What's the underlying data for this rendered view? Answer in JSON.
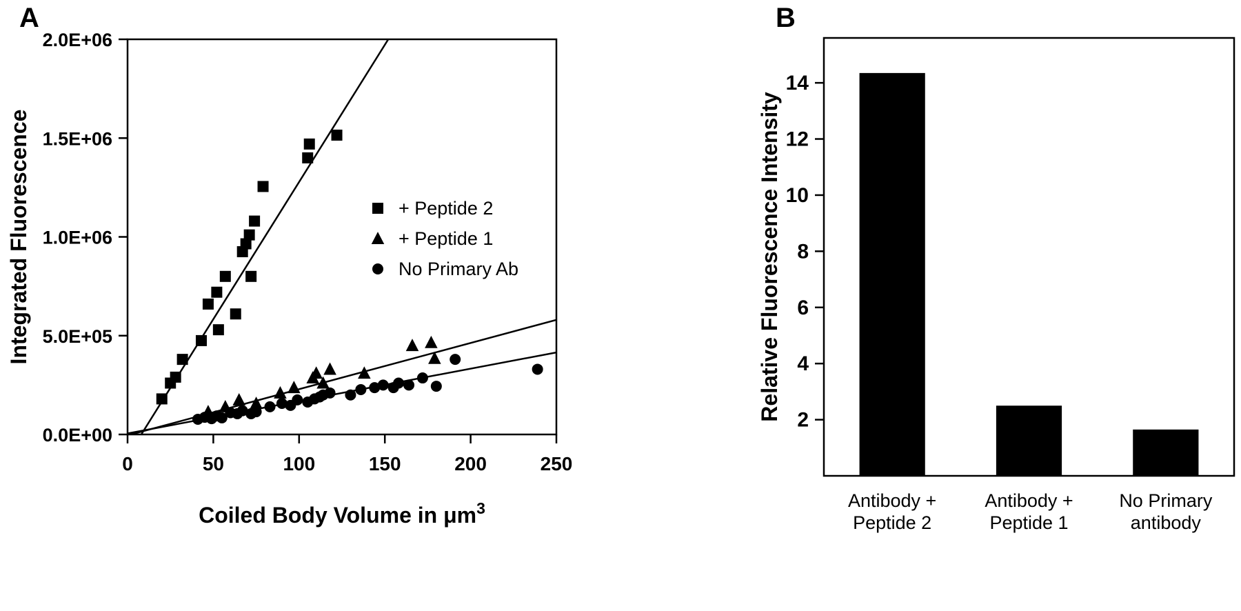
{
  "figure": {
    "panel_a_label": "A",
    "panel_b_label": "B"
  },
  "chart_data": [
    {
      "type": "scatter",
      "panel": "A",
      "xlabel_main": "Coiled Body Volume in μm",
      "xlabel_sup": "3",
      "ylabel": "Integrated Fluorescence",
      "xlim": [
        0,
        250
      ],
      "ylim": [
        0,
        2000000
      ],
      "xticks": [
        0,
        50,
        100,
        150,
        200,
        250
      ],
      "ytick_values": [
        0,
        500000,
        1000000,
        1500000,
        2000000
      ],
      "ytick_labels": [
        "0.0E+00",
        "5.0E+05",
        "1.0E+06",
        "1.5E+06",
        "2.0E+06"
      ],
      "grid": false,
      "legend_position": "inside-right-middle",
      "series": [
        {
          "name": "+ Peptide 2",
          "marker": "square",
          "color": "#000000",
          "points": [
            [
              20,
              180000
            ],
            [
              25,
              260000
            ],
            [
              28,
              290000
            ],
            [
              32,
              380000
            ],
            [
              43,
              475000
            ],
            [
              47,
              660000
            ],
            [
              52,
              720000
            ],
            [
              53,
              530000
            ],
            [
              57,
              800000
            ],
            [
              63,
              610000
            ],
            [
              67,
              925000
            ],
            [
              69,
              965000
            ],
            [
              71,
              1010000
            ],
            [
              72,
              800000
            ],
            [
              74,
              1080000
            ],
            [
              79,
              1255000
            ],
            [
              105,
              1400000
            ],
            [
              106,
              1470000
            ],
            [
              122,
              1515000
            ]
          ],
          "fit_line": {
            "x1": 8,
            "y1": 0,
            "x2": 152,
            "y2": 2000000
          }
        },
        {
          "name": "+ Peptide 1",
          "marker": "triangle",
          "color": "#000000",
          "points": [
            [
              47,
              115000
            ],
            [
              57,
              140000
            ],
            [
              65,
              175000
            ],
            [
              75,
              157000
            ],
            [
              89,
              210000
            ],
            [
              97,
              237000
            ],
            [
              108,
              286000
            ],
            [
              110,
              310000
            ],
            [
              114,
              260000
            ],
            [
              118,
              330000
            ],
            [
              138,
              310000
            ],
            [
              166,
              450000
            ],
            [
              177,
              465000
            ],
            [
              179,
              385000
            ]
          ],
          "fit_line": {
            "x1": 2,
            "y1": 0,
            "x2": 250,
            "y2": 580000
          }
        },
        {
          "name": "No Primary Ab",
          "marker": "circle",
          "color": "#000000",
          "points": [
            [
              41,
              77000
            ],
            [
              45,
              87000
            ],
            [
              49,
              80000
            ],
            [
              52,
              94000
            ],
            [
              55,
              84000
            ],
            [
              60,
              110000
            ],
            [
              64,
              105000
            ],
            [
              67,
              120000
            ],
            [
              72,
              105000
            ],
            [
              75,
              115000
            ],
            [
              83,
              140000
            ],
            [
              90,
              157000
            ],
            [
              95,
              147000
            ],
            [
              99,
              175000
            ],
            [
              105,
              164000
            ],
            [
              109,
              180000
            ],
            [
              112,
              190000
            ],
            [
              114,
              200000
            ],
            [
              118,
              210000
            ],
            [
              130,
              200000
            ],
            [
              136,
              227000
            ],
            [
              144,
              237000
            ],
            [
              149,
              250000
            ],
            [
              155,
              237000
            ],
            [
              158,
              260000
            ],
            [
              164,
              250000
            ],
            [
              172,
              286000
            ],
            [
              180,
              244000
            ],
            [
              191,
              380000
            ],
            [
              239,
              330000
            ]
          ],
          "fit_line": {
            "x1": 0,
            "y1": 5000,
            "x2": 250,
            "y2": 415000
          }
        }
      ]
    },
    {
      "type": "bar",
      "panel": "B",
      "ylabel": "Relative Fluorescence Intensity",
      "categories": [
        [
          "Antibody +",
          "Peptide 2"
        ],
        [
          "Antibody +",
          "Peptide 1"
        ],
        [
          "No Primary",
          "antibody"
        ]
      ],
      "values": [
        14.35,
        2.5,
        1.65
      ],
      "yticks": [
        2,
        4,
        6,
        8,
        10,
        12,
        14
      ],
      "ylim": [
        0,
        15.6
      ],
      "bar_color": "#000000",
      "grid": false
    }
  ]
}
